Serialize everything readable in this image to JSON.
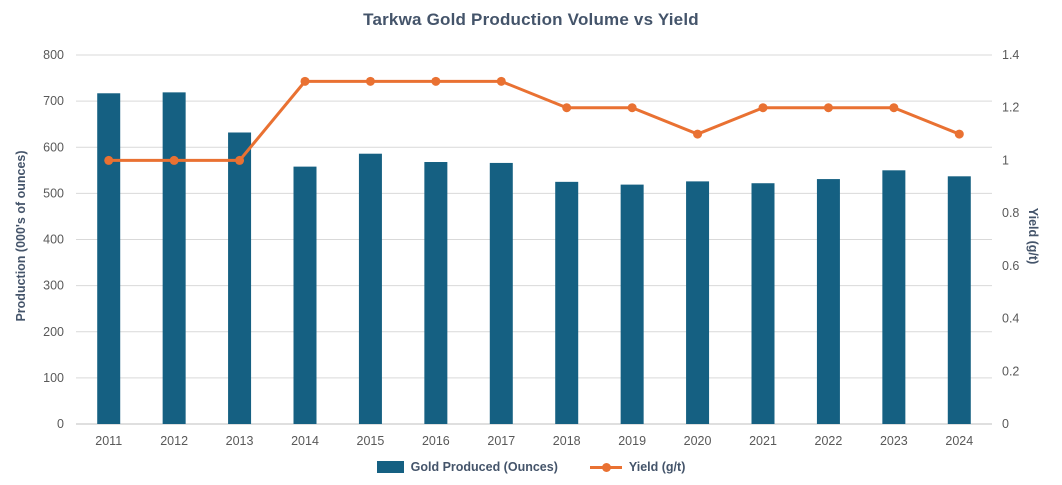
{
  "chart_data": {
    "type": "combo-bar-line",
    "title": "Tarkwa Gold Production Volume vs Yield",
    "categories": [
      "2011",
      "2012",
      "2013",
      "2014",
      "2015",
      "2016",
      "2017",
      "2018",
      "2019",
      "2020",
      "2021",
      "2022",
      "2023",
      "2024"
    ],
    "series": [
      {
        "name": "Gold Produced (Ounces)",
        "type": "bar",
        "axis": "left",
        "color": "#156082",
        "values": [
          717,
          719,
          632,
          558,
          586,
          568,
          566,
          525,
          519,
          526,
          522,
          531,
          550,
          537
        ]
      },
      {
        "name": "Yield (g/t)",
        "type": "line",
        "axis": "right",
        "color": "#E97132",
        "values": [
          1.0,
          1.0,
          1.0,
          1.3,
          1.3,
          1.3,
          1.3,
          1.2,
          1.2,
          1.1,
          1.2,
          1.2,
          1.2,
          1.1
        ]
      }
    ],
    "left_axis": {
      "label": "Production (000's of ounces)",
      "min": 0,
      "max": 800,
      "ticks": [
        0,
        100,
        200,
        300,
        400,
        500,
        600,
        700,
        800
      ]
    },
    "right_axis": {
      "label": "Yield (g/t)",
      "min": 0,
      "max": 1.4,
      "ticks": [
        "0",
        "0.2",
        "0.4",
        "0.6",
        "0.8",
        "1",
        "1.2",
        "1.4"
      ]
    },
    "grid": true,
    "legend_position": "bottom",
    "colors": {
      "gridline": "#d9d9d9",
      "baseline": "#bfbfbf",
      "axis_text": "#595959",
      "title_text": "#44546A"
    }
  }
}
